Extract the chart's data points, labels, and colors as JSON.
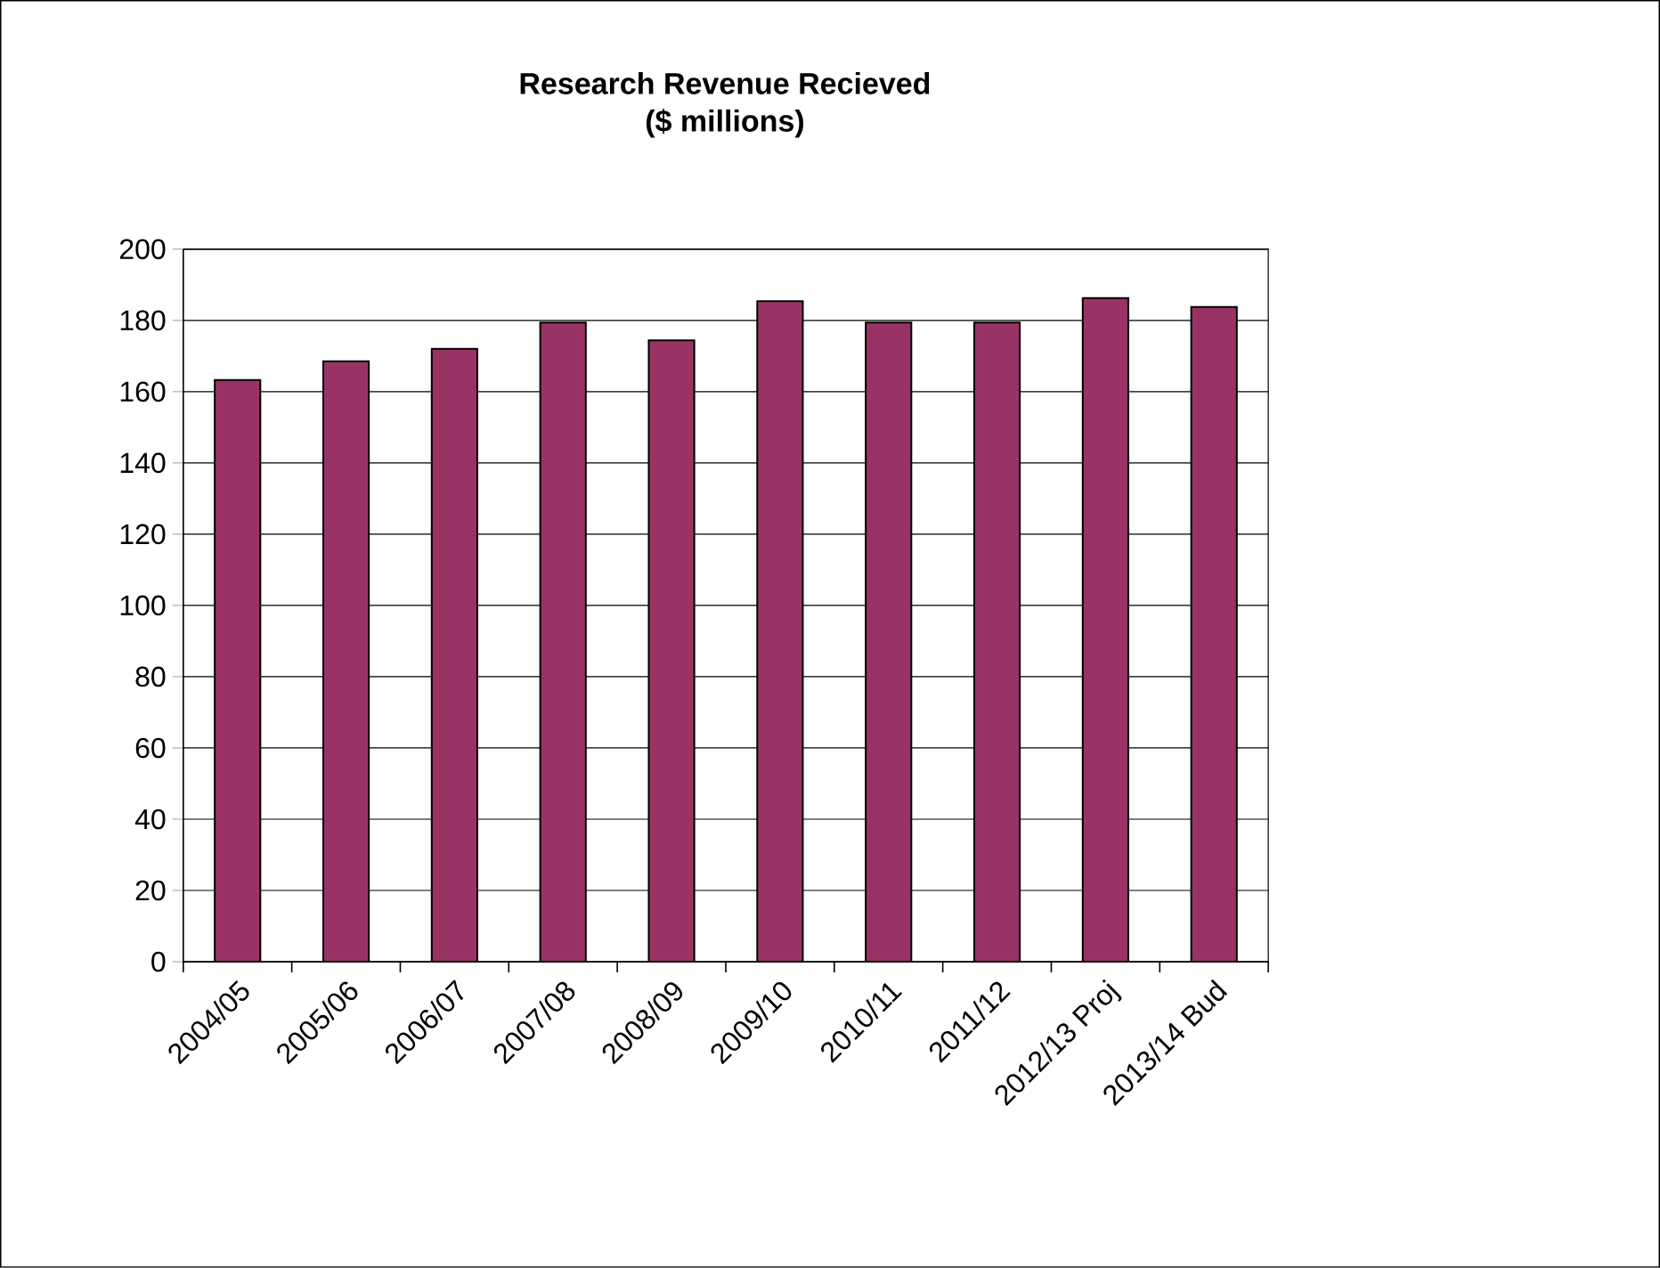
{
  "chart_data": {
    "type": "bar",
    "title": "Research Revenue Recieved",
    "subtitle": "($ millions)",
    "categories": [
      "2004/05",
      "2005/06",
      "2006/07",
      "2007/08",
      "2008/09",
      "2009/10",
      "2010/11",
      "2011/12",
      "2012/13 Proj",
      "2013/14 Bud"
    ],
    "values": [
      163.3,
      168.5,
      172,
      179.4,
      174.4,
      185.4,
      179.4,
      179.4,
      186.3,
      183.8
    ],
    "color": "#993366",
    "ylim": [
      0,
      200
    ],
    "yticks": [
      0,
      20,
      40,
      60,
      80,
      100,
      120,
      140,
      160,
      180,
      200
    ],
    "grid": "y"
  }
}
